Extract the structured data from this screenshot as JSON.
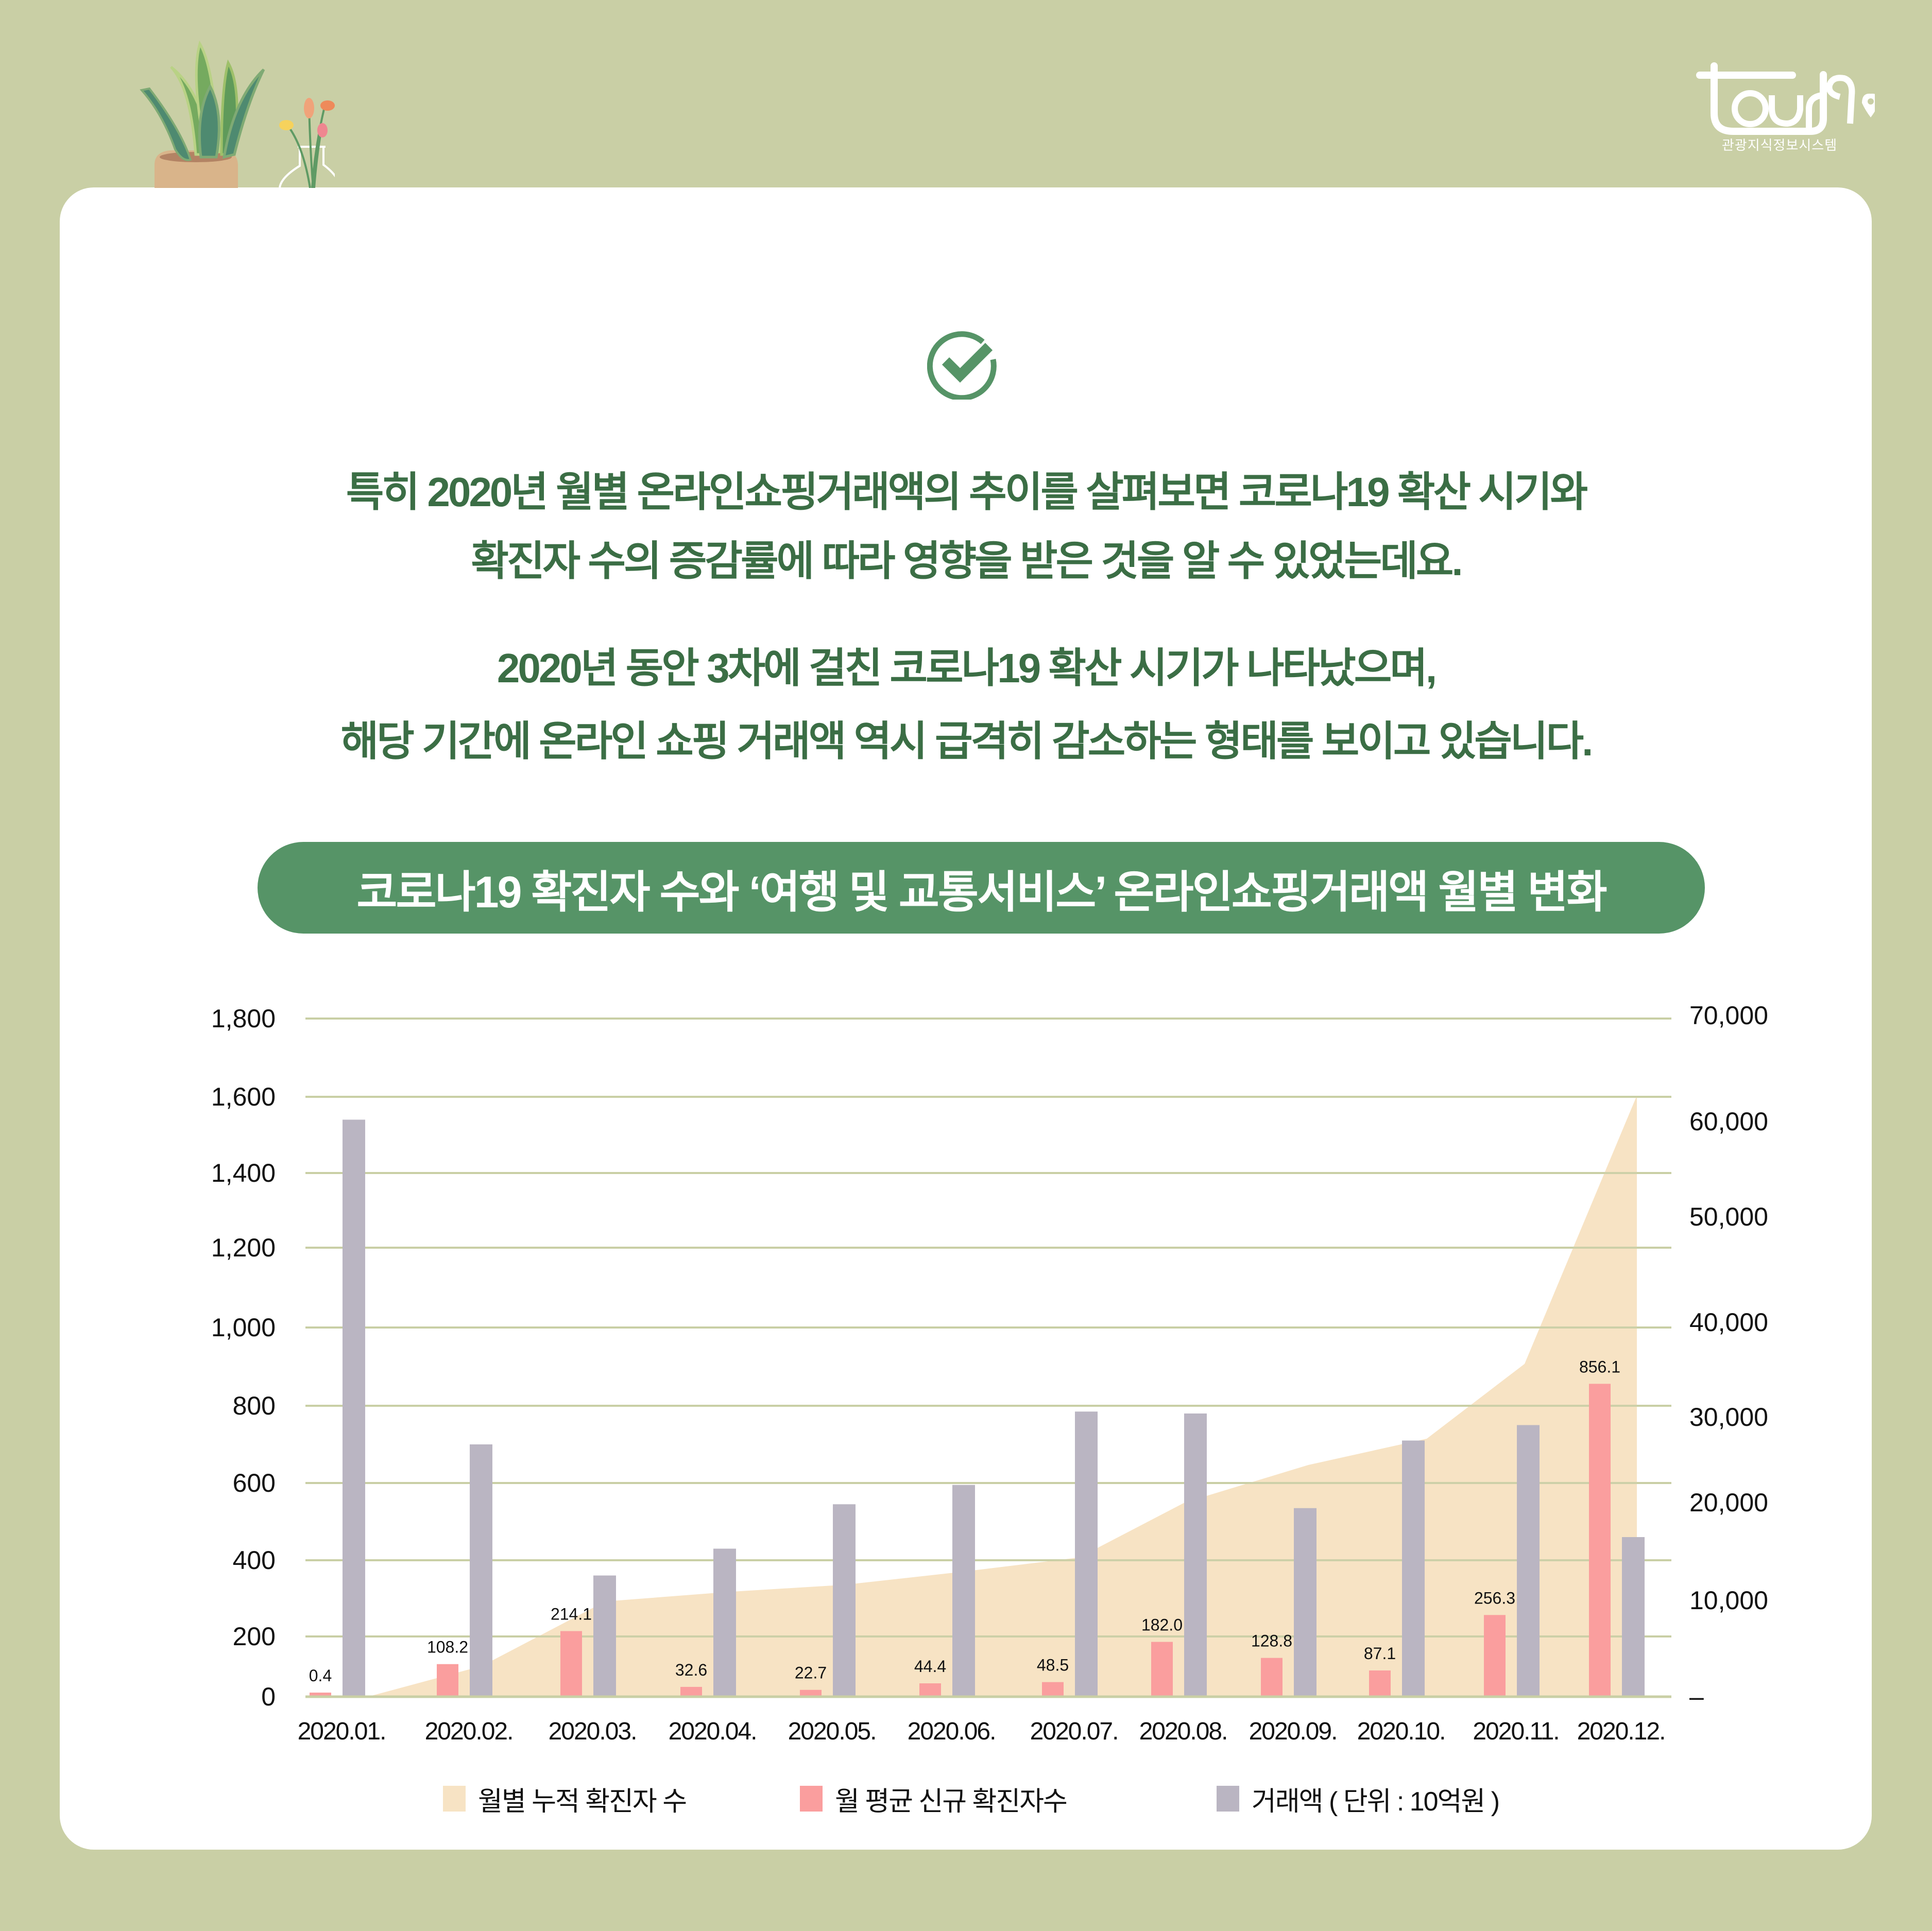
{
  "brand": {
    "logo_text": "tour9",
    "subtitle": "관광지식정보시스템"
  },
  "colors": {
    "background": "#c9cfa5",
    "card": "#ffffff",
    "accent_green": "#569467",
    "text_green": "#3b6e45",
    "cumulative_area": "#f7e3c4",
    "new_cases_bar": "#fa9e9e",
    "transactions_bar": "#bab5c2",
    "gridline": "#c9cfa5"
  },
  "intro": {
    "icon": "check-circle-icon",
    "paragraph1": [
      "특히 2020년 월별 온라인쇼핑거래액의 추이를 살펴보면 코로나19 확산 시기와",
      "확진자 수의 증감률에 따라 영향을 받은 것을 알 수 있었는데요."
    ],
    "paragraph2": [
      "2020년 동안 3차에 걸친 코로나19 확산 시기가 나타났으며,",
      "해당 기간에 온라인 쇼핑 거래액 역시 급격히 감소하는 형태를 보이고 있습니다."
    ]
  },
  "chart_title": "코로나19 확진자 수와 ‘여행 및 교통서비스’ 온라인쇼핑거래액 월별 변화",
  "legend": [
    {
      "label": "월별 누적 확진자 수",
      "color": "#f7e3c4"
    },
    {
      "label": "월 평균 신규 확진자수",
      "color": "#fa9e9e"
    },
    {
      "label": "거래액 ( 단위 : 10억원 )",
      "color": "#bab5c2"
    }
  ],
  "chart_data": {
    "type": "bar",
    "title": "코로나19 확진자 수와 ‘여행 및 교통서비스’ 온라인쇼핑거래액 월별 변화",
    "categories": [
      "2020.01.",
      "2020.02.",
      "2020.03.",
      "2020.04.",
      "2020.05.",
      "2020.06.",
      "2020.07.",
      "2020.08.",
      "2020.09.",
      "2020.10.",
      "2020.11.",
      "2020.12."
    ],
    "left_axis": {
      "ticks": [
        "0",
        "200",
        "400",
        "600",
        "800",
        "1,000",
        "1,200",
        "1,400",
        "1,600",
        "1,800"
      ],
      "ylim": [
        0,
        1800
      ]
    },
    "right_axis": {
      "ticks": [
        "–",
        "10,000",
        "20,000",
        "30,000",
        "40,000",
        "50,000",
        "60,000",
        "70,000"
      ],
      "ylim": [
        0,
        70000
      ]
    },
    "series": [
      {
        "name": "월별 누적 확진자 수",
        "type": "area",
        "axis": "right",
        "values": [
          11,
          3150,
          9786,
          10774,
          11503,
          12850,
          14305,
          19947,
          23812,
          26511,
          34201,
          61769
        ]
      },
      {
        "name": "월 평균 신규 확진자수",
        "type": "bar",
        "axis": "left",
        "values": [
          0.4,
          108.2,
          214.1,
          32.6,
          22.7,
          44.4,
          48.5,
          182.0,
          128.8,
          87.1,
          256.3,
          856.1
        ],
        "labels": [
          "0.4",
          "108.2",
          "214.1",
          "32.6",
          "22.7",
          "44.4",
          "48.5",
          "182.0",
          "128.8",
          "87.1",
          "256.3",
          "856.1"
        ]
      },
      {
        "name": "거래액 ( 단위 : 10억원 )",
        "type": "bar",
        "axis": "left",
        "values": [
          1540,
          700,
          360,
          430,
          545,
          595,
          785,
          780,
          535,
          710,
          750,
          460
        ]
      }
    ],
    "grid": true,
    "legend_position": "bottom"
  }
}
